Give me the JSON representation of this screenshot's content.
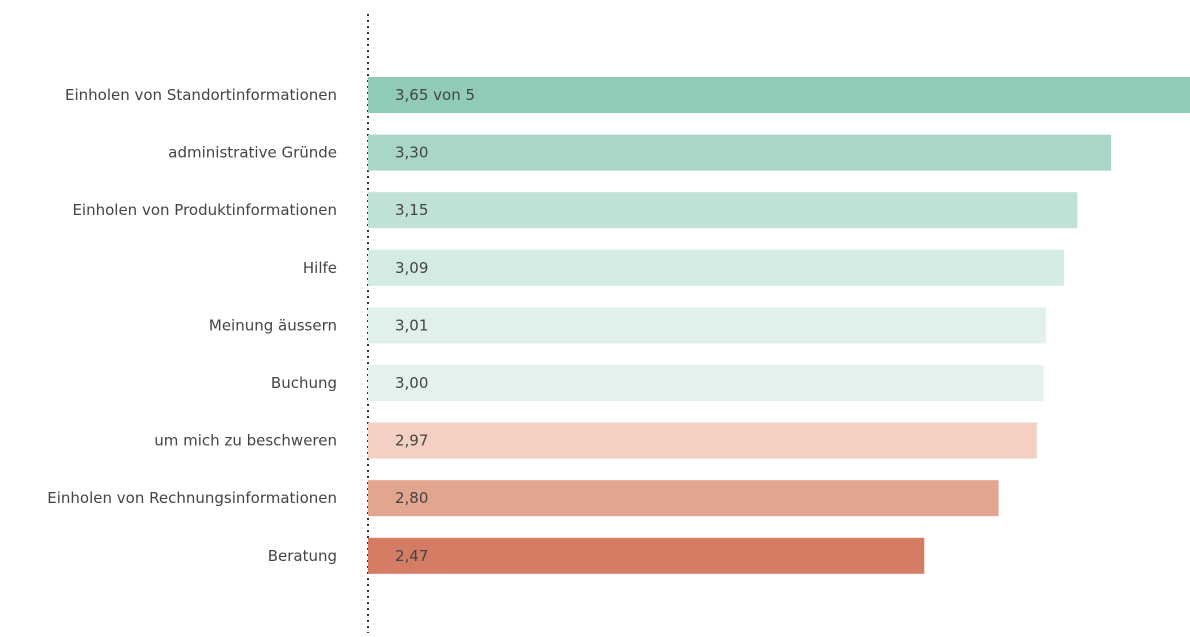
{
  "chart_data": {
    "type": "bar",
    "orientation": "horizontal",
    "title": "",
    "xlabel": "",
    "ylabel": "",
    "xlim": [
      0,
      3.65
    ],
    "grid": false,
    "legend": "none",
    "categories": [
      "Einholen von Standortinformationen",
      "administrative Gründe",
      "Einholen von Produktinformationen",
      "Hilfe",
      "Meinung äussern",
      "Buchung",
      "um mich zu beschweren",
      "Einholen von Rechnungsinformationen",
      "Beratung"
    ],
    "values": [
      3.65,
      3.3,
      3.15,
      3.09,
      3.01,
      3.0,
      2.97,
      2.8,
      2.47
    ],
    "value_labels": [
      "3,65 von 5",
      "3,30",
      "3,15",
      "3,09",
      "3,01",
      "3,00",
      "2,97",
      "2,80",
      "2,47"
    ],
    "colors": [
      "#8fcbb5",
      "#a8d7c5",
      "#c0e2d4",
      "#d4ebe2",
      "#e0f1ea",
      "#e3f3ec",
      "#f4d0c4",
      "#e2a58e",
      "#d57c65"
    ],
    "axis_line_color": "#333333",
    "label_color": "#444444"
  }
}
